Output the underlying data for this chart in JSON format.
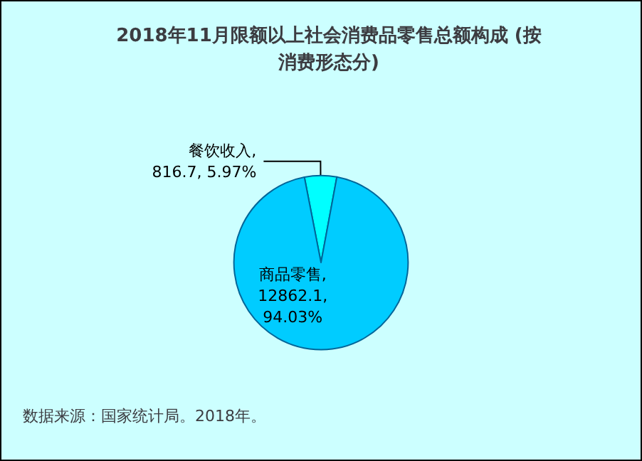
{
  "chart_data": {
    "type": "pie",
    "title": "2018年11月限额以上社会消费品零售总额构成 (按消费形态分)",
    "categories": [
      "餐饮收入",
      "商品零售"
    ],
    "values": [
      816.7,
      12862.1
    ],
    "value_labels": [
      ",\n816.7, 5.97%",
      ",\n12862.1,\n94.03%"
    ],
    "colors": [
      "#00ffff",
      "#00ccff"
    ],
    "legend": false,
    "annotations": [
      "数据来源：国家统计局。2018年。"
    ]
  }
}
